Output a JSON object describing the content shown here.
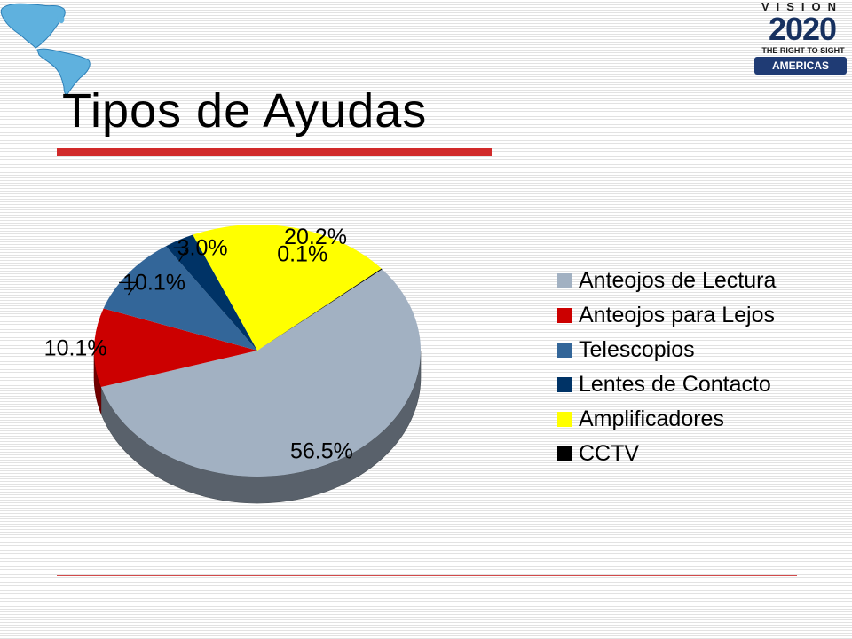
{
  "slide": {
    "title": "Tipos de Ayudas",
    "logo": {
      "vision": "VISION",
      "year": "2020",
      "tagline": "THE RIGHT TO SIGHT",
      "region": "AMERICAS"
    }
  },
  "colors": {
    "accent_red": "#d12a2a",
    "title_text": "#000000"
  },
  "chart_data": {
    "type": "pie",
    "style": "3d",
    "title": "",
    "legend_placement": "right",
    "slices": [
      {
        "label": "Anteojos de Lectura",
        "value": 56.5,
        "value_label": "56.5%",
        "color": "#a2b1c2"
      },
      {
        "label": "Anteojos para Lejos",
        "value": 10.1,
        "value_label": "10.1%",
        "color": "#cc0000"
      },
      {
        "label": "Telescopios",
        "value": 10.1,
        "value_label": "10.1%",
        "color": "#336699"
      },
      {
        "label": "Lentes de Contacto",
        "value": 3.0,
        "value_label": "3.0%",
        "color": "#003366"
      },
      {
        "label": "Amplificadores",
        "value": 20.2,
        "value_label": "20.2%",
        "color": "#ffff00"
      },
      {
        "label": "CCTV",
        "value": 0.1,
        "value_label": "0.1%",
        "color": "#000000"
      }
    ]
  }
}
